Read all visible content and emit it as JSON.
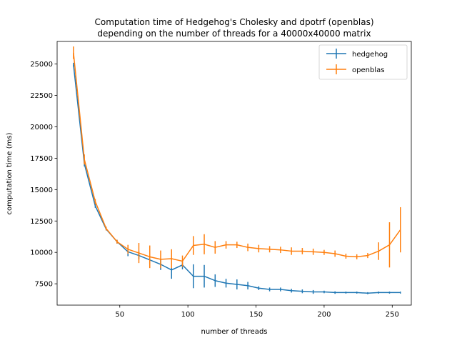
{
  "chart_data": {
    "type": "line",
    "title_lines": [
      "Computation time of Hedgehog's Cholesky and dpotrf (openblas)",
      "depending on the number of threads for a 40000x40000 matrix"
    ],
    "xlabel": "number of threads",
    "ylabel": "computation time (ms)",
    "xlim": [
      4,
      264
    ],
    "ylim": [
      5800,
      26800
    ],
    "xticks": [
      50,
      100,
      150,
      200,
      250
    ],
    "yticks": [
      7500,
      10000,
      12500,
      15000,
      17500,
      20000,
      22500,
      25000
    ],
    "ytick_labels": [
      "7500",
      "10000",
      "12500",
      "15000",
      "17500",
      "20000",
      "22500",
      "25000"
    ],
    "xtick_labels": [
      "50",
      "100",
      "150",
      "200",
      "250"
    ],
    "legend_position": "upper right",
    "series": [
      {
        "name": "hedgehog",
        "color": "#1f77b4",
        "x": [
          16,
          24,
          32,
          40,
          48,
          56,
          64,
          72,
          80,
          88,
          96,
          104,
          112,
          120,
          128,
          136,
          144,
          152,
          160,
          168,
          176,
          184,
          192,
          200,
          208,
          216,
          224,
          232,
          240,
          248,
          256
        ],
        "y": [
          24950,
          17050,
          13700,
          11850,
          10850,
          10050,
          9750,
          9400,
          9050,
          8600,
          9000,
          8100,
          8100,
          7750,
          7550,
          7450,
          7350,
          7150,
          7050,
          7050,
          6950,
          6900,
          6850,
          6850,
          6800,
          6800,
          6800,
          6750,
          6800,
          6800,
          6800
        ],
        "err": [
          150,
          200,
          150,
          100,
          150,
          350,
          300,
          350,
          450,
          700,
          350,
          950,
          900,
          500,
          350,
          400,
          300,
          150,
          150,
          150,
          150,
          150,
          150,
          100,
          100,
          80,
          80,
          80,
          80,
          80,
          80
        ]
      },
      {
        "name": "openblas",
        "color": "#ff7f0e",
        "x": [
          16,
          24,
          32,
          40,
          48,
          56,
          64,
          72,
          80,
          88,
          96,
          104,
          112,
          120,
          128,
          136,
          144,
          152,
          160,
          168,
          176,
          184,
          192,
          200,
          208,
          216,
          224,
          232,
          240,
          248,
          256
        ],
        "y": [
          25900,
          17400,
          14050,
          11900,
          10850,
          10250,
          9950,
          9650,
          9450,
          9500,
          9300,
          10550,
          10650,
          10400,
          10600,
          10600,
          10400,
          10300,
          10250,
          10200,
          10100,
          10100,
          10050,
          10000,
          9900,
          9700,
          9650,
          9750,
          10100,
          10600,
          11800
        ],
        "err": [
          500,
          400,
          200,
          150,
          150,
          350,
          800,
          900,
          700,
          750,
          450,
          750,
          800,
          500,
          300,
          250,
          300,
          300,
          250,
          250,
          300,
          250,
          250,
          200,
          250,
          200,
          200,
          200,
          700,
          1800,
          1800
        ]
      }
    ]
  }
}
